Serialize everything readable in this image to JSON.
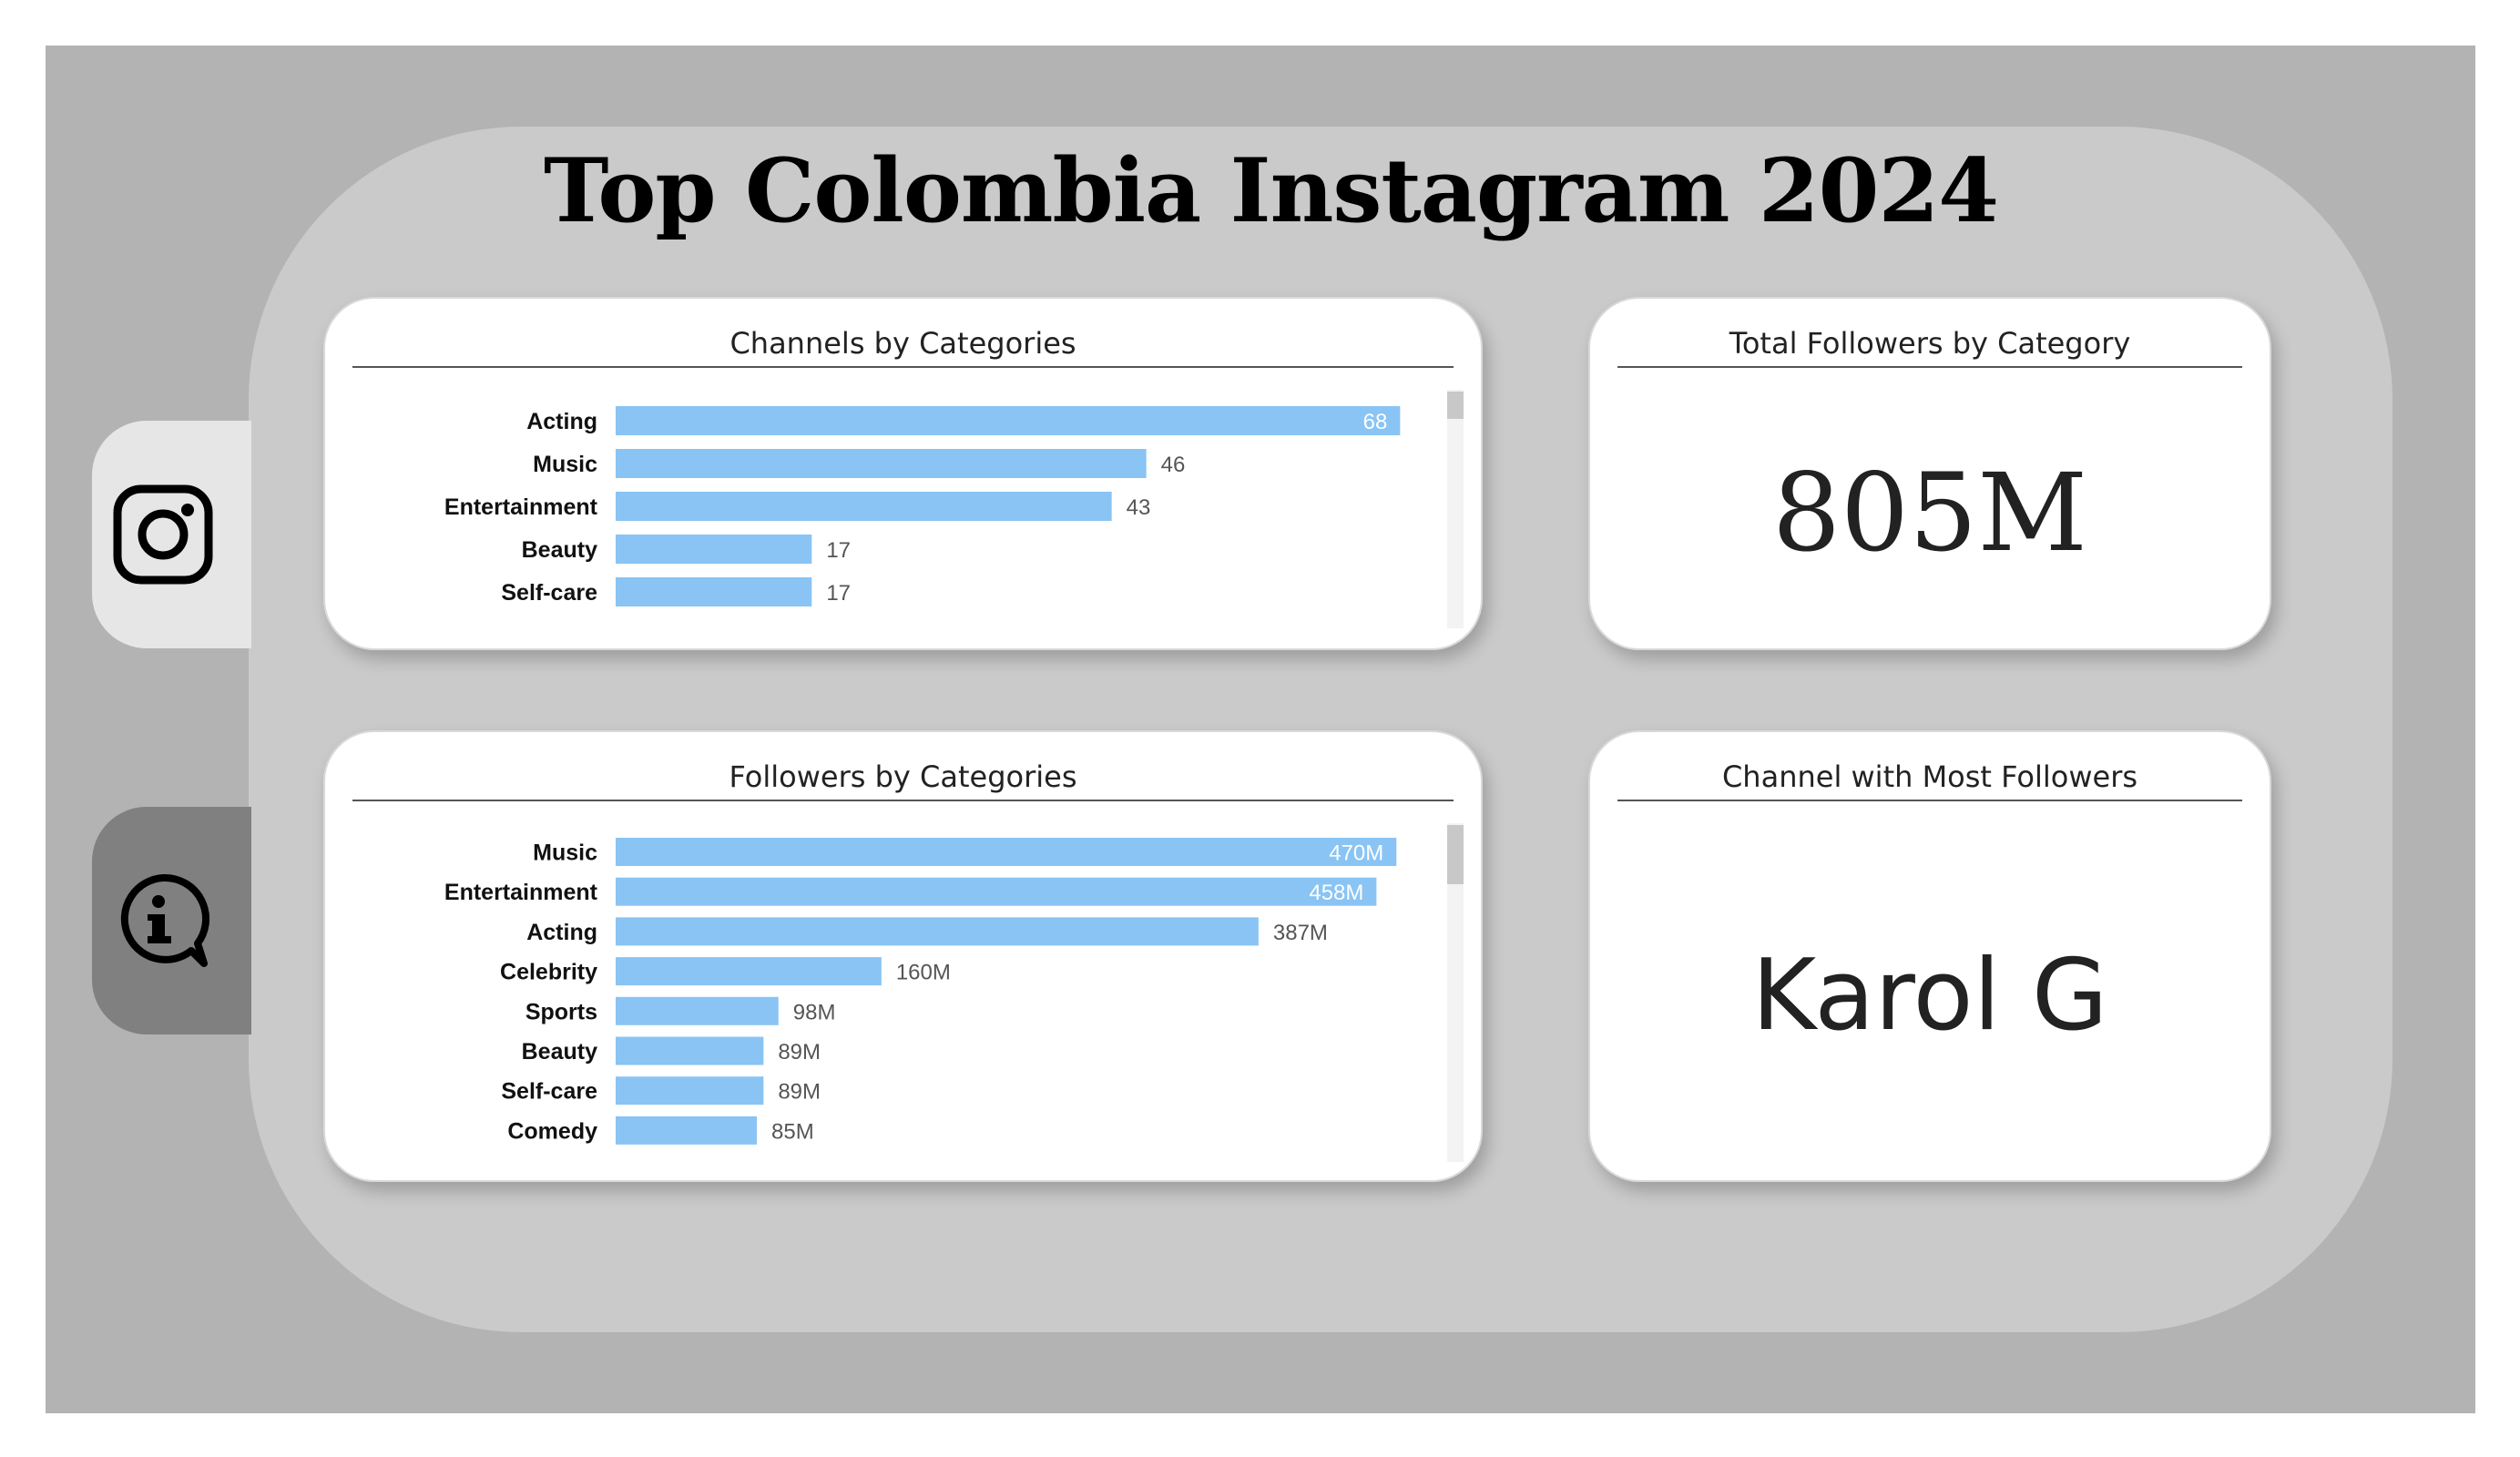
{
  "title": "Top Colombia Instagram 2024",
  "sidebar": {
    "tabs": [
      {
        "icon": "instagram-icon"
      },
      {
        "icon": "info-icon"
      }
    ]
  },
  "cards": {
    "channels_by_categories": {
      "title": "Channels by Categories"
    },
    "total_followers": {
      "title": "Total Followers by Category",
      "value": "805M"
    },
    "followers_by_categories": {
      "title": "Followers by Categories"
    },
    "top_channel": {
      "title": "Channel with Most Followers",
      "value": "Karol G"
    }
  },
  "colors": {
    "bar": "#89c4f4",
    "panel": "#cacaca",
    "background": "#b3b3b3"
  },
  "chart_data": [
    {
      "type": "bar",
      "orientation": "horizontal",
      "title": "Channels by Categories",
      "categories": [
        "Acting",
        "Music",
        "Entertainment",
        "Beauty",
        "Self-care"
      ],
      "values": [
        68,
        46,
        43,
        17,
        17
      ],
      "labels": [
        "68",
        "46",
        "43",
        "17",
        "17"
      ],
      "xlim": [
        0,
        72
      ]
    },
    {
      "type": "bar",
      "orientation": "horizontal",
      "title": "Followers by Categories",
      "categories": [
        "Music",
        "Entertainment",
        "Acting",
        "Celebrity",
        "Sports",
        "Beauty",
        "Self-care",
        "Comedy"
      ],
      "values": [
        470,
        458,
        387,
        160,
        98,
        89,
        89,
        85
      ],
      "labels": [
        "470M",
        "458M",
        "387M",
        "160M",
        "98M",
        "89M",
        "89M",
        "85M"
      ],
      "xlim": [
        0,
        500
      ]
    }
  ]
}
